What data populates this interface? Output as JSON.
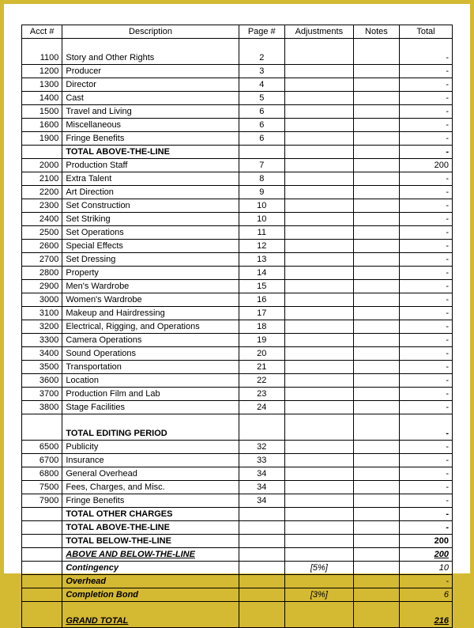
{
  "columns": [
    "Acct #",
    "Description",
    "Page #",
    "Adjustments",
    "Notes",
    "Total"
  ],
  "rows": [
    {
      "t": "blank"
    },
    {
      "t": "body",
      "acct": "1100",
      "desc": "Story and Other Rights",
      "page": "2",
      "adj": "",
      "notes": "",
      "total": "-"
    },
    {
      "t": "body",
      "acct": "1200",
      "desc": "Producer",
      "page": "3",
      "adj": "",
      "notes": "",
      "total": "-"
    },
    {
      "t": "body",
      "acct": "1300",
      "desc": "Director",
      "page": "4",
      "adj": "",
      "notes": "",
      "total": "-"
    },
    {
      "t": "body",
      "acct": "1400",
      "desc": "Cast",
      "page": "5",
      "adj": "",
      "notes": "",
      "total": "-"
    },
    {
      "t": "body",
      "acct": "1500",
      "desc": "Travel and Living",
      "page": "6",
      "adj": "",
      "notes": "",
      "total": "-"
    },
    {
      "t": "body",
      "acct": "1600",
      "desc": "Miscellaneous",
      "page": "6",
      "adj": "",
      "notes": "",
      "total": "-"
    },
    {
      "t": "body",
      "acct": "1900",
      "desc": "Fringe Benefits",
      "page": "6",
      "adj": "",
      "notes": "",
      "total": "-"
    },
    {
      "t": "body",
      "acct": "",
      "desc": "TOTAL ABOVE-THE-LINE",
      "descStyle": "bold",
      "page": "",
      "adj": "",
      "notes": "",
      "total": "-",
      "totalStyle": "bold"
    },
    {
      "t": "body",
      "acct": "2000",
      "desc": "Production Staff",
      "page": "7",
      "adj": "",
      "notes": "",
      "total": "200"
    },
    {
      "t": "body",
      "acct": "2100",
      "desc": "Extra Talent",
      "page": "8",
      "adj": "",
      "notes": "",
      "total": "-"
    },
    {
      "t": "body",
      "acct": "2200",
      "desc": "Art Direction",
      "page": "9",
      "adj": "",
      "notes": "",
      "total": "-"
    },
    {
      "t": "body",
      "acct": "2300",
      "desc": "Set Construction",
      "page": "10",
      "adj": "",
      "notes": "",
      "total": "-"
    },
    {
      "t": "body",
      "acct": "2400",
      "desc": "Set Striking",
      "page": "10",
      "adj": "",
      "notes": "",
      "total": "-"
    },
    {
      "t": "body",
      "acct": "2500",
      "desc": "Set Operations",
      "page": "11",
      "adj": "",
      "notes": "",
      "total": "-"
    },
    {
      "t": "body",
      "acct": "2600",
      "desc": "Special Effects",
      "page": "12",
      "adj": "",
      "notes": "",
      "total": "-"
    },
    {
      "t": "body",
      "acct": "2700",
      "desc": "Set Dressing",
      "page": "13",
      "adj": "",
      "notes": "",
      "total": "-"
    },
    {
      "t": "body",
      "acct": "2800",
      "desc": "Property",
      "page": "14",
      "adj": "",
      "notes": "",
      "total": "-"
    },
    {
      "t": "body",
      "acct": "2900",
      "desc": "Men's Wardrobe",
      "page": "15",
      "adj": "",
      "notes": "",
      "total": "-"
    },
    {
      "t": "body",
      "acct": "3000",
      "desc": "Women's Wardrobe",
      "page": "16",
      "adj": "",
      "notes": "",
      "total": "-"
    },
    {
      "t": "body",
      "acct": "3100",
      "desc": "Makeup and Hairdressing",
      "page": "17",
      "adj": "",
      "notes": "",
      "total": "-"
    },
    {
      "t": "body",
      "acct": "3200",
      "desc": "Electrical, Rigging, and Operations",
      "page": "18",
      "adj": "",
      "notes": "",
      "total": "-"
    },
    {
      "t": "body",
      "acct": "3300",
      "desc": "Camera Operations",
      "page": "19",
      "adj": "",
      "notes": "",
      "total": "-"
    },
    {
      "t": "body",
      "acct": "3400",
      "desc": "Sound Operations",
      "page": "20",
      "adj": "",
      "notes": "",
      "total": "-"
    },
    {
      "t": "body",
      "acct": "3500",
      "desc": "Transportation",
      "page": "21",
      "adj": "",
      "notes": "",
      "total": "-"
    },
    {
      "t": "body",
      "acct": "3600",
      "desc": "Location",
      "page": "22",
      "adj": "",
      "notes": "",
      "total": "-"
    },
    {
      "t": "body",
      "acct": "3700",
      "desc": "Production Film and Lab",
      "page": "23",
      "adj": "",
      "notes": "",
      "total": "-"
    },
    {
      "t": "body",
      "acct": "3800",
      "desc": "Stage Facilities",
      "page": "24",
      "adj": "",
      "notes": "",
      "total": "-"
    },
    {
      "t": "blank"
    },
    {
      "t": "body",
      "acct": "",
      "desc": "TOTAL EDITING PERIOD",
      "descStyle": "bold",
      "page": "",
      "adj": "",
      "notes": "",
      "total": "-",
      "totalStyle": "bold"
    },
    {
      "t": "body",
      "acct": "6500",
      "desc": "Publicity",
      "page": "32",
      "adj": "",
      "notes": "",
      "total": "-"
    },
    {
      "t": "body",
      "acct": "6700",
      "desc": "Insurance",
      "page": "33",
      "adj": "",
      "notes": "",
      "total": "-"
    },
    {
      "t": "body",
      "acct": "6800",
      "desc": "General Overhead",
      "page": "34",
      "adj": "",
      "notes": "",
      "total": "-"
    },
    {
      "t": "body",
      "acct": "7500",
      "desc": "Fees, Charges, and Misc.",
      "page": "34",
      "adj": "",
      "notes": "",
      "total": "-"
    },
    {
      "t": "body",
      "acct": "7900",
      "desc": "Fringe Benefits",
      "page": "34",
      "adj": "",
      "notes": "",
      "total": "-"
    },
    {
      "t": "body",
      "acct": "",
      "desc": "TOTAL OTHER CHARGES",
      "descStyle": "bold",
      "page": "",
      "adj": "",
      "notes": "",
      "total": "-",
      "totalStyle": "bold"
    },
    {
      "t": "body",
      "acct": "",
      "desc": "TOTAL ABOVE-THE-LINE",
      "descStyle": "bold",
      "page": "",
      "adj": "",
      "notes": "",
      "total": "-",
      "totalStyle": "bold"
    },
    {
      "t": "body",
      "acct": "",
      "desc": "TOTAL BELOW-THE-LINE",
      "descStyle": "bold",
      "page": "",
      "adj": "",
      "notes": "",
      "total": "200",
      "totalStyle": "bold"
    },
    {
      "t": "body",
      "acct": "",
      "desc": "ABOVE AND BELOW-THE-LINE",
      "descStyle": "biu",
      "page": "",
      "adj": "",
      "notes": "",
      "total": "200",
      "totalStyle": "biu"
    },
    {
      "t": "body",
      "acct": "",
      "desc": "Contingency",
      "descStyle": "bold ital",
      "page": "",
      "adj": "[5%]",
      "adjStyle": "ital",
      "notes": "",
      "total": "10",
      "totalStyle": "ital"
    },
    {
      "t": "body",
      "acct": "",
      "desc": "Overhead",
      "descStyle": "bold ital",
      "page": "",
      "adj": "",
      "notes": "",
      "total": "-",
      "totalStyle": "ital"
    },
    {
      "t": "body",
      "acct": "",
      "desc": "Completion Bond",
      "descStyle": "bold ital",
      "page": "",
      "adj": "[3%]",
      "adjStyle": "ital",
      "notes": "",
      "total": "6",
      "totalStyle": "ital"
    },
    {
      "t": "blank"
    },
    {
      "t": "last",
      "acct": "",
      "desc": "GRAND TOTAL",
      "descStyle": "biu",
      "page": "",
      "adj": "",
      "notes": "",
      "total": "216",
      "totalStyle": "biu"
    }
  ]
}
